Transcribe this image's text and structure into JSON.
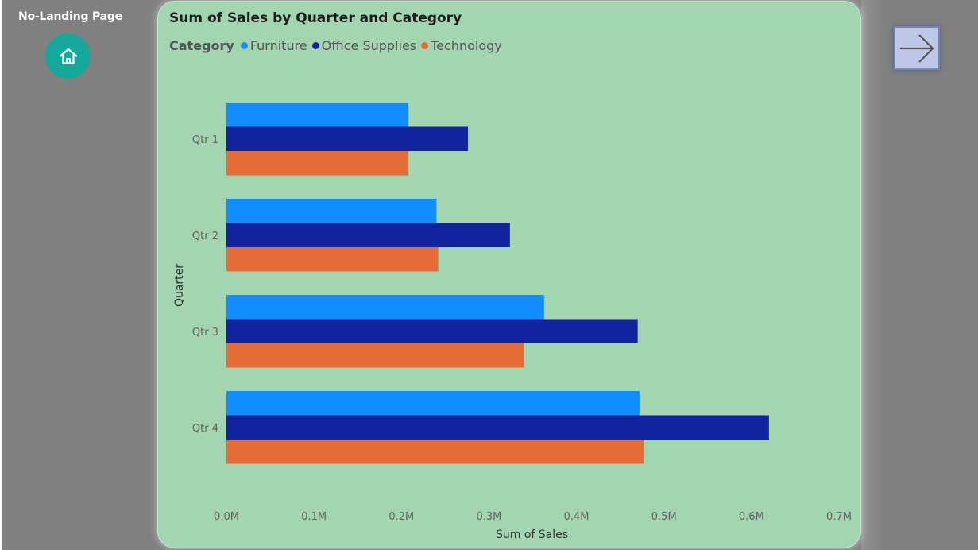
{
  "page": {
    "title": "No-Landing Page"
  },
  "icons": {
    "home": "home-icon",
    "next": "arrow-right-icon"
  },
  "colors": {
    "background": "#808080",
    "card": "#A2D5B0",
    "home_button": "#14A99A",
    "next_button": "#BEC8E6"
  },
  "legend": {
    "title": "Category"
  },
  "chart_data": {
    "type": "bar",
    "orientation": "horizontal",
    "title": "Sum of Sales by Quarter and Category",
    "xlabel": "Sum of Sales",
    "ylabel": "Quarter",
    "categories": [
      "Qtr 1",
      "Qtr 2",
      "Qtr 3",
      "Qtr 4"
    ],
    "series": [
      {
        "name": "Furniture",
        "color": "#118DFF",
        "values": [
          0.208,
          0.24,
          0.363,
          0.472
        ]
      },
      {
        "name": "Office Supplies",
        "color": "#12239E",
        "values": [
          0.276,
          0.324,
          0.47,
          0.62
        ]
      },
      {
        "name": "Technology",
        "color": "#E66C37",
        "values": [
          0.208,
          0.242,
          0.34,
          0.477
        ]
      }
    ],
    "xlim": [
      0,
      0.7
    ],
    "xticks": [
      "0.0M",
      "0.1M",
      "0.2M",
      "0.3M",
      "0.4M",
      "0.5M",
      "0.6M",
      "0.7M"
    ],
    "grid": false,
    "legend_position": "top-left"
  }
}
